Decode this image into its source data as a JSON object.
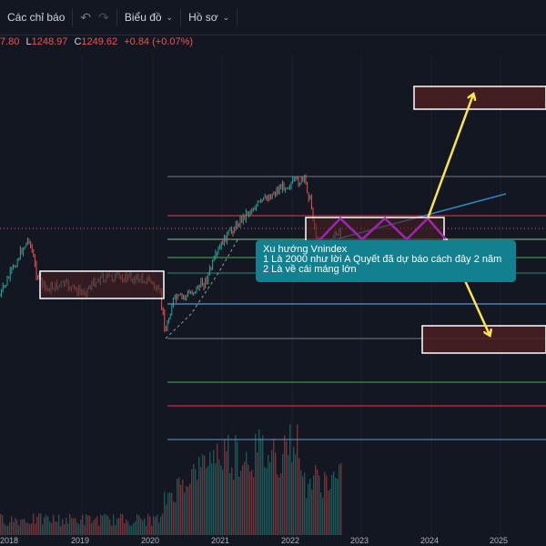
{
  "toolbar": {
    "indicators_label": "Các chỉ báo",
    "undo_icon": "undo-icon",
    "redo_icon": "redo-icon",
    "chart_type_label": "Biểu đồ",
    "profile_label": "Hồ sơ"
  },
  "ohlc": {
    "high_partial": "7.80",
    "low_key": "L",
    "low_value": "1248.97",
    "close_key": "C",
    "close_value": "1249.62",
    "change": "+0.84 (+0.07%)"
  },
  "annotation": {
    "line1": "Xu hướng Vnindex",
    "line2": "1 Là 2000 như lời A Quyết đã dự báo cách đây 2 năm",
    "line3": "2 Là về cái máng lớn"
  },
  "x_axis": {
    "labels": [
      "2018",
      "2019",
      "2020",
      "2021",
      "2022",
      "2023",
      "2024",
      "2025"
    ]
  },
  "colors": {
    "background": "#131722",
    "up_candle": "#26a69a",
    "down_candle": "#ef5350",
    "note_fill": "#12808f",
    "arrow": "#ffe54c",
    "zigzag": "#9c27b0",
    "box_fill": "#4a1f22",
    "box_border": "#ffffff"
  }
}
